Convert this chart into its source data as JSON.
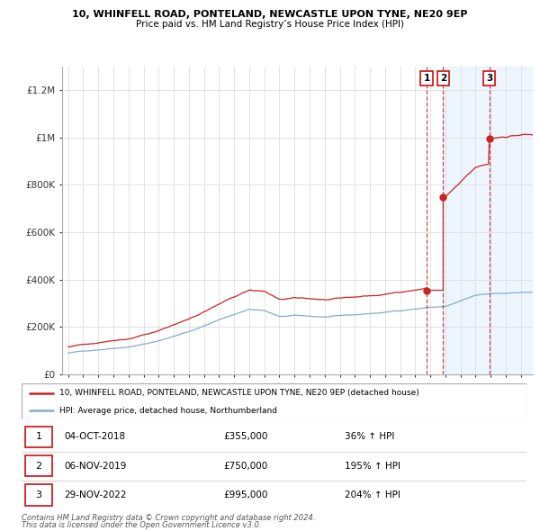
{
  "title1": "10, WHINFELL ROAD, PONTELAND, NEWCASTLE UPON TYNE, NE20 9EP",
  "title2": "Price paid vs. HM Land Registry’s House Price Index (HPI)",
  "ylabel_ticks": [
    "£0",
    "£200K",
    "£400K",
    "£600K",
    "£800K",
    "£1M",
    "£1.2M"
  ],
  "ytick_values": [
    0,
    200000,
    400000,
    600000,
    800000,
    1000000,
    1200000
  ],
  "ylim": [
    0,
    1300000
  ],
  "xlim_start": 1994.6,
  "xlim_end": 2025.8,
  "hpi_color": "#88aacc",
  "price_color": "#cc2222",
  "sale_marker_color": "#cc2222",
  "dashed_line_color": "#cc3333",
  "transaction_box_color": "#cc2222",
  "shade_color": "#ddeeff",
  "legend_label_red": "10, WHINFELL ROAD, PONTELAND, NEWCASTLE UPON TYNE, NE20 9EP (detached house)",
  "legend_label_blue": "HPI: Average price, detached house, Northumberland",
  "transactions": [
    {
      "id": 1,
      "date": "04-OCT-2018",
      "price": 355000,
      "pct": "36%",
      "year": 2018.76
    },
    {
      "id": 2,
      "date": "06-NOV-2019",
      "price": 750000,
      "pct": "195%",
      "year": 2019.85
    },
    {
      "id": 3,
      "date": "29-NOV-2022",
      "price": 995000,
      "pct": "204%",
      "year": 2022.91
    }
  ],
  "shade_regions": [
    {
      "x_start": 2019.85,
      "x_end": 2022.91
    },
    {
      "x_start": 2022.91,
      "x_end": 2025.8
    }
  ],
  "footer1": "Contains HM Land Registry data © Crown copyright and database right 2024.",
  "footer2": "This data is licensed under the Open Government Licence v3.0."
}
